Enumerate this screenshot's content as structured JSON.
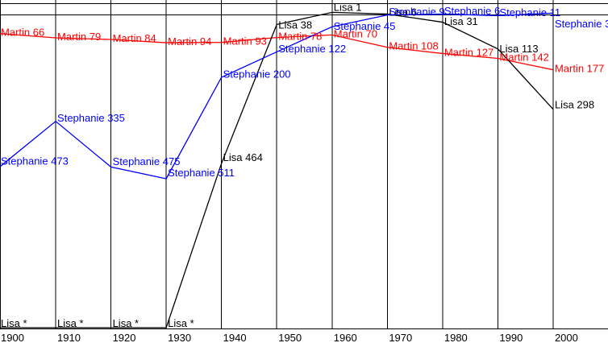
{
  "chart_data": {
    "type": "line",
    "title": "",
    "xlabel": "",
    "ylabel": "",
    "x": [
      1900,
      1910,
      1920,
      1930,
      1940,
      1950,
      1960,
      1970,
      1980,
      1990,
      2000
    ],
    "x_tick_labels": [
      "1900",
      "1910",
      "1920",
      "1930",
      "1940",
      "1950",
      "1960",
      "1970",
      "1980",
      "1990",
      "2000"
    ],
    "y_inverted": true,
    "unranked_symbol": "*",
    "legend_position": "none",
    "grid": "vertical-decade-lines",
    "series": [
      {
        "name": "Martin",
        "color": "#ff0000",
        "values": [
          66,
          79,
          84,
          94,
          93,
          78,
          70,
          108,
          127,
          142,
          177
        ],
        "point_labels": [
          "Martin 66",
          "Martin 79",
          "Martin 84",
          "Martin 94",
          "Martin 93",
          "Martin 78",
          "Martin 70",
          "Martin 108",
          "Martin 127",
          "Martin 142",
          "Martin 177"
        ]
      },
      {
        "name": "Lisa",
        "color": "#000000",
        "values": [
          null,
          null,
          null,
          null,
          464,
          38,
          1,
          6,
          31,
          113,
          298
        ],
        "point_labels": [
          "Lisa *",
          "Lisa *",
          "Lisa *",
          "Lisa *",
          "Lisa 464",
          "Lisa 38",
          "Lisa 1",
          "Lisa 6",
          "Lisa 31",
          "Lisa 113",
          "Lisa 298"
        ]
      },
      {
        "name": "Stephanie",
        "color": "#0000ff",
        "values": [
          473,
          335,
          475,
          511,
          200,
          122,
          45,
          9,
          6,
          11,
          3
        ],
        "point_labels": [
          "Stephanie 473",
          "Stephanie 335",
          "Stephanie 475",
          "Stephanie 511",
          "Stephanie 200",
          "Stephanie 122",
          "Stephanie 45",
          "Stephanie 9",
          "Stephanie 6",
          "Stephanie 11",
          "Stephanie 3"
        ]
      }
    ]
  }
}
